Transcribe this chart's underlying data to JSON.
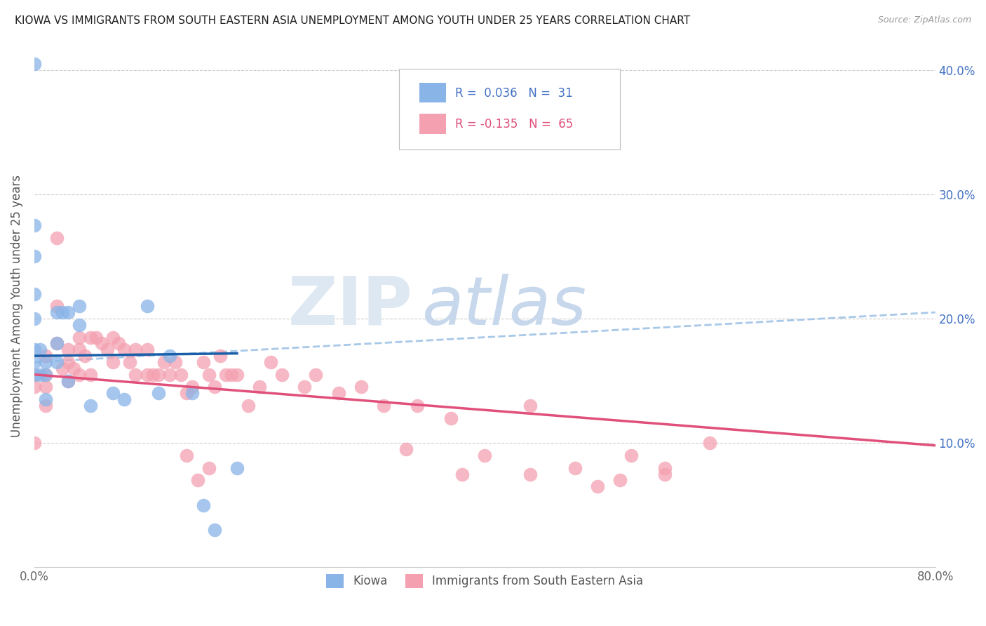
{
  "title": "KIOWA VS IMMIGRANTS FROM SOUTH EASTERN ASIA UNEMPLOYMENT AMONG YOUTH UNDER 25 YEARS CORRELATION CHART",
  "source": "Source: ZipAtlas.com",
  "ylabel": "Unemployment Among Youth under 25 years",
  "xlim": [
    0.0,
    0.8
  ],
  "ylim": [
    0.0,
    0.42
  ],
  "color_blue": "#89B4E8",
  "color_pink": "#F4A0B0",
  "line_color_blue": "#1A5FA8",
  "line_color_pink": "#E0507A",
  "line_dash_color": "#A8C8E8",
  "kiowa_x": [
    0.0,
    0.0,
    0.0,
    0.0,
    0.0,
    0.0,
    0.0,
    0.0,
    0.005,
    0.005,
    0.01,
    0.01,
    0.01,
    0.02,
    0.02,
    0.02,
    0.025,
    0.03,
    0.03,
    0.04,
    0.04,
    0.05,
    0.07,
    0.08,
    0.1,
    0.11,
    0.12,
    0.14,
    0.15,
    0.16,
    0.18
  ],
  "kiowa_y": [
    0.405,
    0.275,
    0.25,
    0.22,
    0.2,
    0.175,
    0.165,
    0.155,
    0.175,
    0.155,
    0.165,
    0.155,
    0.135,
    0.205,
    0.18,
    0.165,
    0.205,
    0.205,
    0.15,
    0.21,
    0.195,
    0.13,
    0.14,
    0.135,
    0.21,
    0.14,
    0.17,
    0.14,
    0.05,
    0.03,
    0.08
  ],
  "sea_x": [
    0.0,
    0.0,
    0.0,
    0.01,
    0.01,
    0.01,
    0.01,
    0.02,
    0.02,
    0.02,
    0.025,
    0.03,
    0.03,
    0.03,
    0.035,
    0.04,
    0.04,
    0.04,
    0.045,
    0.05,
    0.05,
    0.055,
    0.06,
    0.065,
    0.07,
    0.07,
    0.075,
    0.08,
    0.085,
    0.09,
    0.09,
    0.1,
    0.1,
    0.105,
    0.11,
    0.115,
    0.12,
    0.125,
    0.13,
    0.135,
    0.14,
    0.15,
    0.155,
    0.16,
    0.165,
    0.17,
    0.175,
    0.18,
    0.19,
    0.2,
    0.21,
    0.22,
    0.24,
    0.25,
    0.27,
    0.29,
    0.31,
    0.34,
    0.37,
    0.4,
    0.44,
    0.48,
    0.52,
    0.56,
    0.6
  ],
  "sea_y": [
    0.155,
    0.145,
    0.1,
    0.17,
    0.155,
    0.145,
    0.13,
    0.265,
    0.21,
    0.18,
    0.16,
    0.175,
    0.165,
    0.15,
    0.16,
    0.185,
    0.175,
    0.155,
    0.17,
    0.185,
    0.155,
    0.185,
    0.18,
    0.175,
    0.185,
    0.165,
    0.18,
    0.175,
    0.165,
    0.175,
    0.155,
    0.175,
    0.155,
    0.155,
    0.155,
    0.165,
    0.155,
    0.165,
    0.155,
    0.14,
    0.145,
    0.165,
    0.155,
    0.145,
    0.17,
    0.155,
    0.155,
    0.155,
    0.13,
    0.145,
    0.165,
    0.155,
    0.145,
    0.155,
    0.14,
    0.145,
    0.13,
    0.13,
    0.12,
    0.09,
    0.13,
    0.08,
    0.07,
    0.08,
    0.1
  ],
  "sea_extra_x": [
    0.135,
    0.145,
    0.155,
    0.33,
    0.38,
    0.44,
    0.5,
    0.53,
    0.56
  ],
  "sea_extra_y": [
    0.09,
    0.07,
    0.08,
    0.095,
    0.075,
    0.075,
    0.065,
    0.09,
    0.075
  ],
  "blue_line": [
    0.0,
    0.18,
    0.17,
    0.172
  ],
  "pink_line": [
    0.0,
    0.8,
    0.155,
    0.098
  ],
  "dash_line": [
    0.0,
    0.8,
    0.165,
    0.205
  ]
}
